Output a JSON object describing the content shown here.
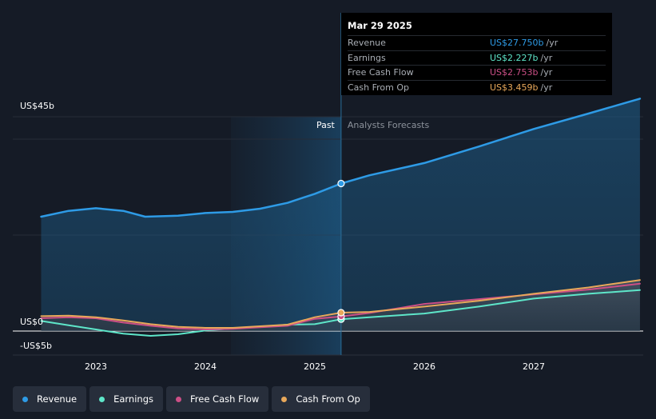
{
  "chart_data": {
    "type": "line",
    "x_ticks": [
      "2023",
      "2024",
      "2025",
      "2026",
      "2027"
    ],
    "y_ticks": [
      {
        "label": "US$45b",
        "value": 45
      },
      {
        "label": "US$0",
        "value": 0
      },
      {
        "label": "-US$5b",
        "value": -5
      }
    ],
    "ylim": [
      -5,
      45
    ],
    "past_label": "Past",
    "forecast_label": "Analysts Forecasts",
    "divider_x": 2025.24,
    "series": [
      {
        "name": "Revenue",
        "color": "#2e9be6",
        "points": [
          [
            2022.5,
            21.5
          ],
          [
            2022.75,
            22.6
          ],
          [
            2023.0,
            23.1
          ],
          [
            2023.25,
            22.6
          ],
          [
            2023.45,
            21.5
          ],
          [
            2023.75,
            21.7
          ],
          [
            2024.0,
            22.2
          ],
          [
            2024.25,
            22.4
          ],
          [
            2024.5,
            23.0
          ],
          [
            2024.75,
            24.1
          ],
          [
            2025.0,
            25.8
          ],
          [
            2025.24,
            27.75
          ],
          [
            2025.5,
            29.3
          ],
          [
            2026.0,
            31.6
          ],
          [
            2026.5,
            34.7
          ],
          [
            2027.0,
            38.0
          ],
          [
            2027.5,
            40.9
          ],
          [
            2027.97,
            43.7
          ]
        ]
      },
      {
        "name": "Earnings",
        "color": "#5ee6c9",
        "points": [
          [
            2022.5,
            1.9
          ],
          [
            2022.75,
            1.1
          ],
          [
            2023.0,
            0.3
          ],
          [
            2023.25,
            -0.5
          ],
          [
            2023.5,
            -0.9
          ],
          [
            2023.75,
            -0.6
          ],
          [
            2024.0,
            0.1
          ],
          [
            2024.25,
            0.5
          ],
          [
            2024.5,
            0.8
          ],
          [
            2024.75,
            1.2
          ],
          [
            2025.0,
            1.3
          ],
          [
            2025.24,
            2.227
          ],
          [
            2025.5,
            2.6
          ],
          [
            2026.0,
            3.3
          ],
          [
            2026.5,
            4.6
          ],
          [
            2027.0,
            6.1
          ],
          [
            2027.5,
            7.0
          ],
          [
            2027.97,
            7.7
          ]
        ]
      },
      {
        "name": "Free Cash Flow",
        "color": "#cc4f86",
        "points": [
          [
            2022.5,
            2.4
          ],
          [
            2022.75,
            2.6
          ],
          [
            2023.0,
            2.4
          ],
          [
            2023.25,
            1.6
          ],
          [
            2023.5,
            1.0
          ],
          [
            2023.75,
            0.5
          ],
          [
            2024.0,
            0.3
          ],
          [
            2024.25,
            0.4
          ],
          [
            2024.5,
            0.7
          ],
          [
            2024.75,
            1.0
          ],
          [
            2025.0,
            2.3
          ],
          [
            2025.24,
            2.753
          ],
          [
            2025.5,
            3.4
          ],
          [
            2026.0,
            5.1
          ],
          [
            2026.5,
            6.0
          ],
          [
            2027.0,
            6.9
          ],
          [
            2027.5,
            7.8
          ],
          [
            2027.97,
            8.9
          ]
        ]
      },
      {
        "name": "Cash From Op",
        "color": "#e8a85a",
        "points": [
          [
            2022.5,
            2.8
          ],
          [
            2022.75,
            2.9
          ],
          [
            2023.0,
            2.6
          ],
          [
            2023.25,
            2.0
          ],
          [
            2023.5,
            1.3
          ],
          [
            2023.75,
            0.8
          ],
          [
            2024.0,
            0.6
          ],
          [
            2024.25,
            0.6
          ],
          [
            2024.5,
            0.9
          ],
          [
            2024.75,
            1.2
          ],
          [
            2025.0,
            2.6
          ],
          [
            2025.24,
            3.459
          ],
          [
            2025.5,
            3.6
          ],
          [
            2026.0,
            4.6
          ],
          [
            2026.5,
            5.7
          ],
          [
            2027.0,
            7.0
          ],
          [
            2027.5,
            8.2
          ],
          [
            2027.97,
            9.6
          ]
        ]
      }
    ]
  },
  "tooltip": {
    "date": "Mar 29 2025",
    "rows": [
      {
        "label": "Revenue",
        "value": "US$27.750b",
        "unit": "/yr",
        "color": "#2e9be6"
      },
      {
        "label": "Earnings",
        "value": "US$2.227b",
        "unit": "/yr",
        "color": "#5ee6c9"
      },
      {
        "label": "Free Cash Flow",
        "value": "US$2.753b",
        "unit": "/yr",
        "color": "#cc4f86"
      },
      {
        "label": "Cash From Op",
        "value": "US$3.459b",
        "unit": "/yr",
        "color": "#e8a85a"
      }
    ]
  },
  "legend": [
    {
      "label": "Revenue",
      "color": "#2e9be6"
    },
    {
      "label": "Earnings",
      "color": "#5ee6c9"
    },
    {
      "label": "Free Cash Flow",
      "color": "#cc4f86"
    },
    {
      "label": "Cash From Op",
      "color": "#e8a85a"
    }
  ]
}
